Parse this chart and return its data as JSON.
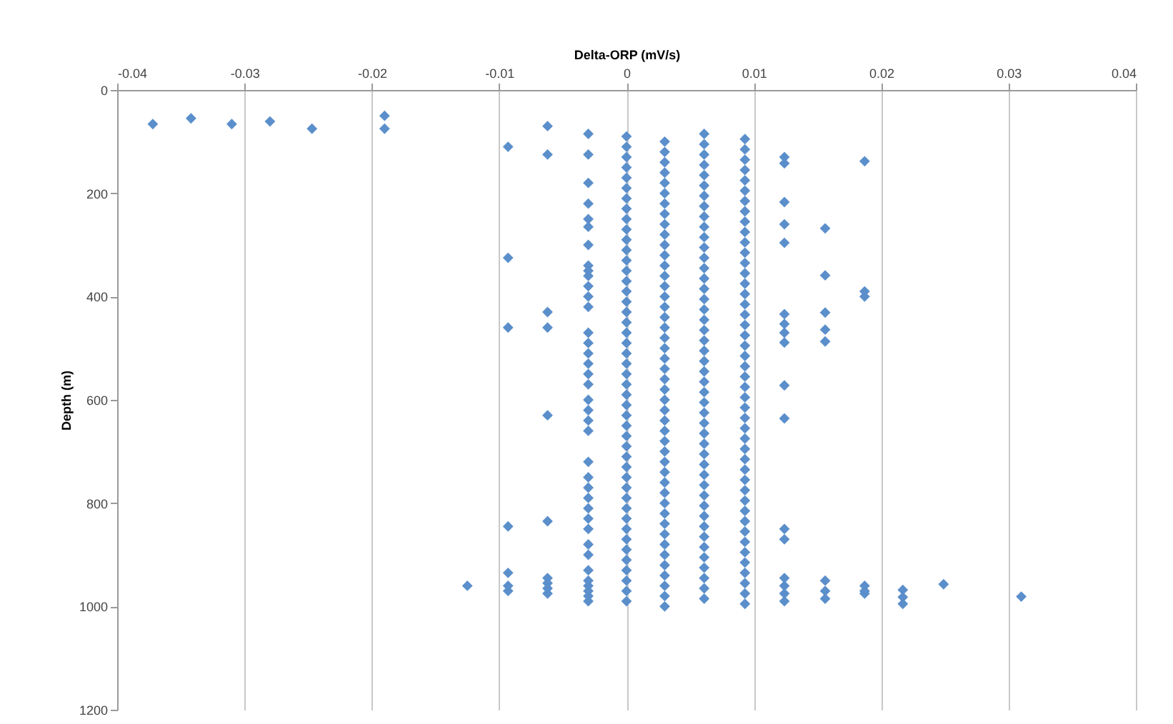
{
  "chart_data": {
    "type": "scatter",
    "xlabel": "Delta-ORP (mV/s)",
    "ylabel": "Depth (m)",
    "xlim": [
      -0.04,
      0.04
    ],
    "xticks": [
      -0.04,
      -0.03,
      -0.02,
      -0.01,
      0,
      0.01,
      0.02,
      0.03,
      0.04
    ],
    "ylim": [
      1200,
      0
    ],
    "yticks": [
      0,
      200,
      400,
      600,
      800,
      1000,
      1200
    ],
    "grid": "x",
    "marker": "diamond",
    "series": [
      {
        "color": "#5b8fcb",
        "x": [
          -0.0372,
          -0.0342,
          -0.031,
          -0.028,
          -0.0247,
          -0.019,
          -0.019,
          -0.0125,
          -0.0093,
          -0.0093,
          -0.0093,
          -0.0093,
          -0.0093,
          -0.0093,
          -0.0093,
          -0.0062,
          -0.0062,
          -0.0062,
          -0.0062,
          -0.0062,
          -0.0062,
          -0.0062,
          -0.0062,
          -0.0062,
          -0.0062,
          -0.003,
          -0.003,
          -0.003,
          -0.003,
          -0.003,
          -0.003,
          -0.003,
          -0.003,
          -0.003,
          -0.003,
          -0.003,
          -0.003,
          -0.003,
          -0.003,
          -0.003,
          -0.003,
          -0.003,
          -0.003,
          -0.003,
          -0.003,
          -0.003,
          -0.003,
          -0.003,
          -0.003,
          -0.003,
          -0.003,
          -0.003,
          -0.003,
          -0.003,
          -0.003,
          -0.003,
          -0.003,
          -0.003,
          -0.003,
          -0.003,
          -0.003,
          -0.003,
          -0.003,
          0,
          0,
          0,
          0,
          0,
          0,
          0,
          0,
          0,
          0,
          0,
          0,
          0,
          0,
          0,
          0,
          0,
          0,
          0,
          0,
          0,
          0,
          0,
          0,
          0,
          0,
          0,
          0,
          0,
          0,
          0,
          0,
          0,
          0,
          0,
          0,
          0,
          0,
          0,
          0,
          0,
          0,
          0,
          0,
          0,
          0,
          0.003,
          0.003,
          0.003,
          0.003,
          0.003,
          0.003,
          0.003,
          0.003,
          0.003,
          0.003,
          0.003,
          0.003,
          0.003,
          0.003,
          0.003,
          0.003,
          0.003,
          0.003,
          0.003,
          0.003,
          0.003,
          0.003,
          0.003,
          0.003,
          0.003,
          0.003,
          0.003,
          0.003,
          0.003,
          0.003,
          0.003,
          0.003,
          0.003,
          0.003,
          0.003,
          0.003,
          0.003,
          0.003,
          0.003,
          0.003,
          0.003,
          0.003,
          0.003,
          0.003,
          0.003,
          0.003,
          0.0061,
          0.0061,
          0.0061,
          0.0061,
          0.0061,
          0.0061,
          0.0061,
          0.0061,
          0.0061,
          0.0061,
          0.0061,
          0.0061,
          0.0061,
          0.0061,
          0.0061,
          0.0061,
          0.0061,
          0.0061,
          0.0061,
          0.0061,
          0.0061,
          0.0061,
          0.0061,
          0.0061,
          0.0061,
          0.0061,
          0.0061,
          0.0061,
          0.0061,
          0.0061,
          0.0061,
          0.0061,
          0.0061,
          0.0061,
          0.0061,
          0.0061,
          0.0061,
          0.0061,
          0.0061,
          0.0061,
          0.0061,
          0.0061,
          0.0061,
          0.0061,
          0.0061,
          0.0061,
          0.0093,
          0.0093,
          0.0093,
          0.0093,
          0.0093,
          0.0093,
          0.0093,
          0.0093,
          0.0093,
          0.0093,
          0.0093,
          0.0093,
          0.0093,
          0.0093,
          0.0093,
          0.0093,
          0.0093,
          0.0093,
          0.0093,
          0.0093,
          0.0093,
          0.0093,
          0.0093,
          0.0093,
          0.0093,
          0.0093,
          0.0093,
          0.0093,
          0.0093,
          0.0093,
          0.0093,
          0.0093,
          0.0093,
          0.0093,
          0.0093,
          0.0093,
          0.0093,
          0.0093,
          0.0093,
          0.0093,
          0.0093,
          0.0093,
          0.0093,
          0.0093,
          0.0093,
          0.0093,
          0.0124,
          0.0124,
          0.0124,
          0.0124,
          0.0124,
          0.0124,
          0.0124,
          0.0124,
          0.0124,
          0.0124,
          0.0124,
          0.0124,
          0.0124,
          0.0124,
          0.0124,
          0.0124,
          0.0124,
          0.0156,
          0.0156,
          0.0156,
          0.0156,
          0.0156,
          0.0156,
          0.0156,
          0.0156,
          0.0187,
          0.0187,
          0.0187,
          0.0187,
          0.0187,
          0.0187,
          0.0217,
          0.0217,
          0.0217,
          0.0249,
          0.031
        ],
        "values": [
          66,
          55,
          66,
          61,
          75,
          50,
          75,
          960,
          110,
          325,
          460,
          845,
          935,
          960,
          970,
          70,
          125,
          430,
          460,
          630,
          835,
          945,
          955,
          965,
          975,
          85,
          125,
          180,
          220,
          250,
          265,
          300,
          340,
          350,
          360,
          380,
          400,
          420,
          470,
          490,
          510,
          530,
          550,
          570,
          600,
          620,
          640,
          660,
          720,
          750,
          770,
          790,
          810,
          830,
          850,
          880,
          900,
          930,
          950,
          960,
          970,
          980,
          990,
          90,
          110,
          130,
          150,
          170,
          190,
          210,
          230,
          250,
          270,
          290,
          310,
          330,
          350,
          370,
          390,
          410,
          430,
          450,
          470,
          490,
          510,
          530,
          550,
          570,
          590,
          610,
          630,
          650,
          670,
          690,
          710,
          730,
          750,
          770,
          790,
          810,
          830,
          850,
          870,
          890,
          910,
          930,
          950,
          970,
          990,
          100,
          120,
          140,
          160,
          180,
          200,
          220,
          240,
          260,
          280,
          300,
          320,
          340,
          360,
          380,
          400,
          420,
          440,
          460,
          480,
          500,
          520,
          540,
          560,
          580,
          600,
          620,
          640,
          660,
          680,
          700,
          720,
          740,
          760,
          780,
          800,
          820,
          840,
          860,
          880,
          900,
          920,
          940,
          960,
          980,
          1000,
          85,
          105,
          125,
          145,
          165,
          185,
          205,
          225,
          245,
          265,
          285,
          305,
          325,
          345,
          365,
          385,
          405,
          425,
          445,
          465,
          485,
          505,
          525,
          545,
          565,
          585,
          605,
          625,
          645,
          665,
          685,
          705,
          725,
          745,
          765,
          785,
          805,
          825,
          845,
          865,
          885,
          905,
          925,
          945,
          965,
          985,
          95,
          115,
          135,
          155,
          175,
          195,
          215,
          235,
          255,
          275,
          295,
          315,
          335,
          355,
          375,
          395,
          415,
          435,
          455,
          475,
          495,
          515,
          535,
          555,
          575,
          595,
          615,
          635,
          655,
          675,
          695,
          715,
          735,
          755,
          775,
          795,
          815,
          835,
          855,
          875,
          895,
          915,
          935,
          955,
          975,
          995,
          130,
          142,
          217,
          260,
          296,
          434,
          453,
          470,
          489,
          572,
          636,
          850,
          870,
          945,
          960,
          975,
          990,
          268,
          359,
          431,
          464,
          487,
          950,
          970,
          985,
          138,
          390,
          400,
          960,
          970,
          975,
          968,
          982,
          995,
          957,
          981
        ]
      }
    ]
  }
}
